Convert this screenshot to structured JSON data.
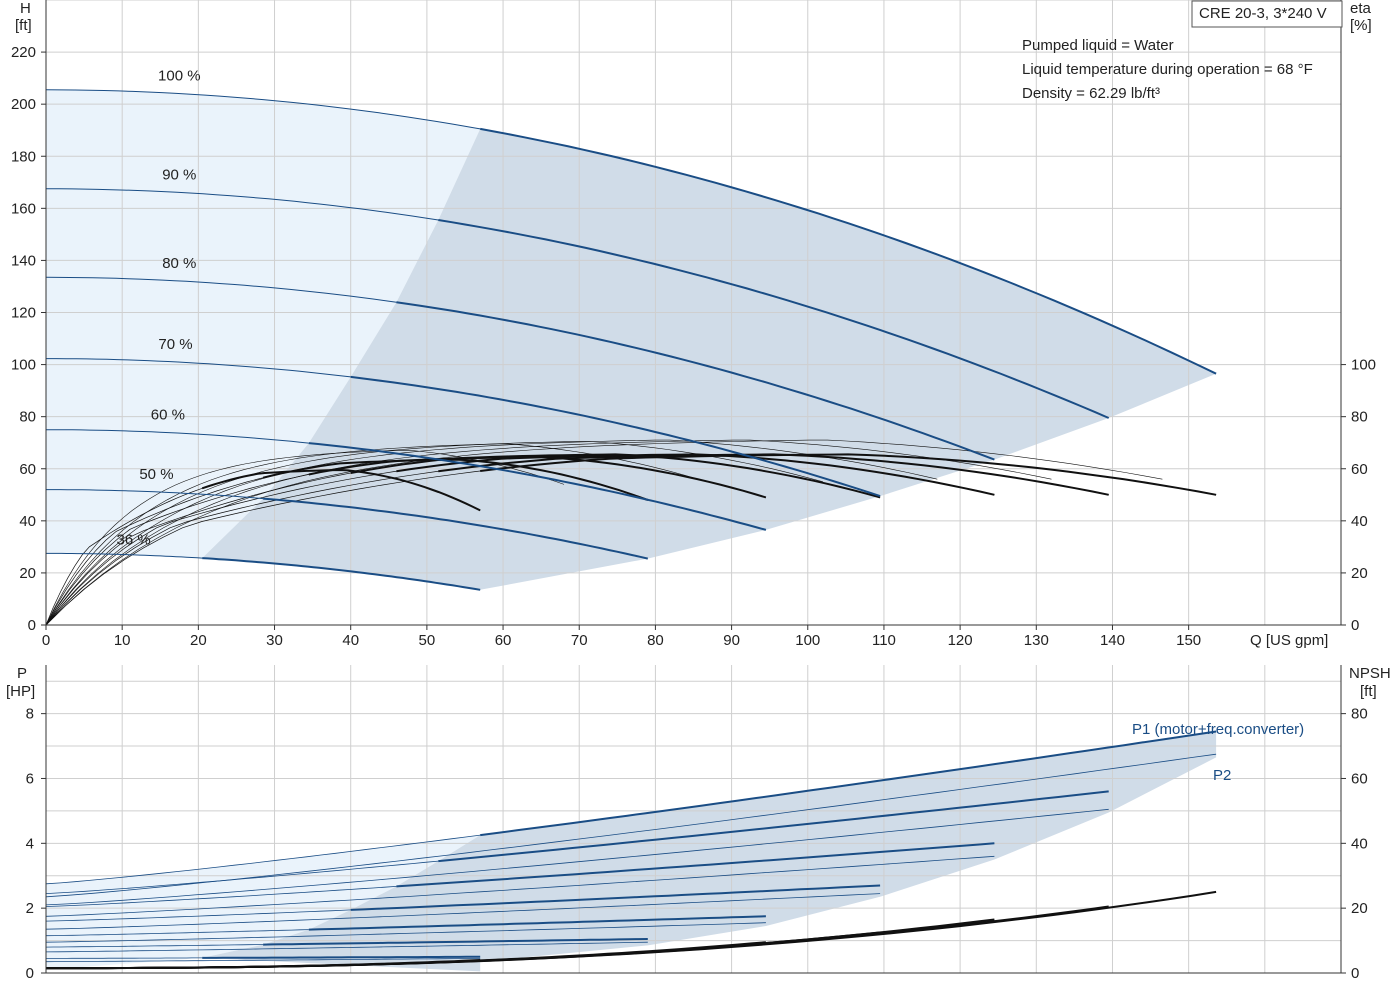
{
  "chart_data": [
    {
      "type": "line",
      "panel": "head-efficiency",
      "title_box": "CRE 20-3, 3*240 V",
      "info_lines": [
        "Pumped liquid = Water",
        "Liquid temperature during operation = 68 °F",
        "Density = 62.29 lb/ft³"
      ],
      "ylabel_left": [
        "H",
        "[ft]"
      ],
      "ylabel_right": [
        "eta",
        "[%]"
      ],
      "xlabel": "Q [US gpm]",
      "xlim": [
        0,
        170
      ],
      "ylim_left": [
        0,
        240
      ],
      "ylim_right": [
        0,
        240
      ],
      "x_ticks": [
        0,
        10,
        20,
        30,
        40,
        50,
        60,
        70,
        80,
        90,
        100,
        110,
        120,
        130,
        140,
        150
      ],
      "y_ticks_left": [
        0,
        20,
        40,
        60,
        80,
        100,
        120,
        140,
        160,
        180,
        200,
        220
      ],
      "y_ticks_right": [
        0,
        20,
        40,
        60,
        80,
        100
      ],
      "grid": true,
      "colors": {
        "head": "#1a4d85",
        "eta": "#111111",
        "region_dark": "#d0dce8",
        "region_light": "#eaf3fb"
      },
      "speed_labels": [
        {
          "text": "100 %",
          "x": 17.5,
          "y": 209
        },
        {
          "text": "90 %",
          "x": 17.5,
          "y": 171
        },
        {
          "text": "80 %",
          "x": 17.5,
          "y": 137
        },
        {
          "text": "70 %",
          "x": 17.0,
          "y": 106
        },
        {
          "text": "60 %",
          "x": 16.0,
          "y": 79
        },
        {
          "text": "50 %",
          "x": 14.5,
          "y": 56
        },
        {
          "text": "36 %",
          "x": 11.5,
          "y": 31
        }
      ],
      "head_curves": [
        {
          "speed": "100 %",
          "h0": 205.5,
          "qmax": 153.6,
          "hmax": 96.5,
          "qmin": 57
        },
        {
          "speed": "90 %",
          "h0": 167.5,
          "qmax": 139.5,
          "hmax": 79.5,
          "qmin": 51.5
        },
        {
          "speed": "80 %",
          "h0": 133.5,
          "qmax": 124.5,
          "hmax": 63.5,
          "qmin": 46
        },
        {
          "speed": "70 %",
          "h0": 102.3,
          "qmax": 109.5,
          "hmax": 49.5,
          "qmin": 40
        },
        {
          "speed": "60 %",
          "h0": 75.0,
          "qmax": 94.5,
          "hmax": 36.5,
          "qmin": 34.5
        },
        {
          "speed": "50 %",
          "h0": 52.0,
          "qmax": 79.0,
          "hmax": 25.5,
          "qmin": 28.5
        },
        {
          "speed": "36 %",
          "h0": 27.5,
          "qmax": 57.0,
          "hmax": 13.5,
          "qmin": 20.5
        }
      ],
      "eta_curves": [
        {
          "qend": 153.6,
          "eta_end": 50,
          "eta_max": 66
        },
        {
          "qend": 139.5,
          "eta_end": 50,
          "eta_max": 66
        },
        {
          "qend": 124.5,
          "eta_end": 50,
          "eta_max": 66
        },
        {
          "qend": 109.5,
          "eta_end": 49,
          "eta_max": 66
        },
        {
          "qend": 94.5,
          "eta_end": 49,
          "eta_max": 65
        },
        {
          "qend": 79.0,
          "eta_end": 48,
          "eta_max": 64
        },
        {
          "qend": 57.0,
          "eta_end": 44,
          "eta_max": 60
        }
      ]
    },
    {
      "type": "line",
      "panel": "power-npsh",
      "ylabel_left": [
        "P",
        "[HP]"
      ],
      "ylabel_right": [
        "NPSH",
        "[ft]"
      ],
      "xlim": [
        0,
        170
      ],
      "ylim_left": [
        0,
        9.5
      ],
      "ylim_right": [
        0,
        95
      ],
      "y_ticks_left": [
        0,
        2,
        4,
        6,
        8
      ],
      "y_ticks_right": [
        0,
        20,
        40,
        60,
        80
      ],
      "grid": true,
      "series_labels": {
        "p1": "P1 (motor+freq.converter)",
        "p2": "P2"
      },
      "p1_curves": [
        {
          "qend": 153.6,
          "p0": 2.75,
          "pend": 7.45,
          "qmin": 57
        },
        {
          "qend": 139.5,
          "p0": 2.45,
          "pend": 5.6,
          "qmin": 51.5
        },
        {
          "qend": 124.5,
          "p0": 2.05,
          "pend": 4.0,
          "qmin": 46
        },
        {
          "qend": 109.5,
          "p0": 1.6,
          "pend": 2.7,
          "qmin": 40
        },
        {
          "qend": 94.5,
          "p0": 1.15,
          "pend": 1.75,
          "qmin": 34.5
        },
        {
          "qend": 79.0,
          "p0": 0.8,
          "pend": 1.05,
          "qmin": 28.5
        },
        {
          "qend": 57.0,
          "p0": 0.45,
          "pend": 0.5,
          "qmin": 20.5
        }
      ],
      "p2_curves": [
        {
          "qend": 153.6,
          "p0": 2.35,
          "pend": 6.75
        },
        {
          "qend": 139.5,
          "p0": 2.1,
          "pend": 5.05
        },
        {
          "qend": 124.5,
          "p0": 1.75,
          "pend": 3.6
        },
        {
          "qend": 109.5,
          "p0": 1.35,
          "pend": 2.45
        },
        {
          "qend": 94.5,
          "p0": 0.95,
          "pend": 1.55
        },
        {
          "qend": 79.0,
          "p0": 0.65,
          "pend": 0.95
        },
        {
          "qend": 57.0,
          "p0": 0.35,
          "pend": 0.45
        }
      ],
      "npsh_curves": [
        {
          "qend": 153.6,
          "npsh_end": 25
        },
        {
          "qend": 139.5,
          "npsh_end": 20.5
        },
        {
          "qend": 124.5,
          "npsh_end": 16.5
        },
        {
          "qend": 109.5,
          "npsh_end": 12.5
        },
        {
          "qend": 94.5,
          "npsh_end": 9.5
        },
        {
          "qend": 79.0,
          "npsh_end": 6.5
        },
        {
          "qend": 57.0,
          "npsh_end": 4.0
        }
      ]
    }
  ]
}
